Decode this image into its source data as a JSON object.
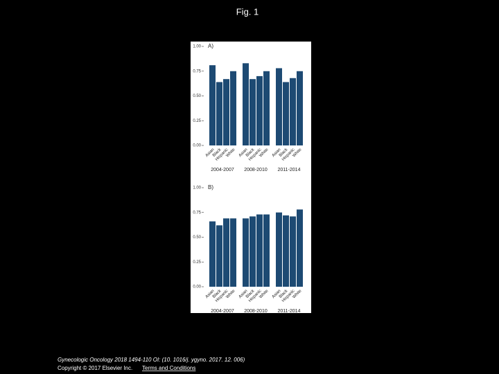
{
  "title": "Fig. 1",
  "chart_data": [
    {
      "type": "bar",
      "panel_label": "A)",
      "color": "#1d4a73",
      "categories": [
        "Asian",
        "Black",
        "Hispanic",
        "White",
        "Asian",
        "Black",
        "Hispanic",
        "White",
        "Asian",
        "Black",
        "Hispanic",
        "White"
      ],
      "groups": [
        "2004-2007",
        "2008-2010",
        "2011-2014"
      ],
      "values": [
        0.81,
        0.64,
        0.67,
        0.75,
        0.83,
        0.67,
        0.7,
        0.75,
        0.78,
        0.64,
        0.68,
        0.75
      ],
      "ylim": [
        0,
        1
      ],
      "yticks": [
        {
          "value": 0,
          "label": "0.00"
        },
        0.25,
        {
          "value": 0.5,
          "label": "0.50"
        },
        0.75,
        {
          "value": 1,
          "label": "1.00"
        }
      ]
    },
    {
      "type": "bar",
      "panel_label": "B)",
      "color": "#1d4a73",
      "categories": [
        "Asian",
        "Black",
        "Hispanic",
        "White",
        "Asian",
        "Black",
        "Hispanic",
        "White",
        "Asian",
        "Black",
        "Hispanic",
        "White"
      ],
      "groups": [
        "2004-2007",
        "2008-2010",
        "2011-2014"
      ],
      "values": [
        0.66,
        0.62,
        0.69,
        0.69,
        0.69,
        0.71,
        0.73,
        0.73,
        0.75,
        0.72,
        0.71,
        0.78
      ],
      "ylim": [
        0,
        1
      ],
      "yticks": [
        {
          "value": 0,
          "label": "0.00"
        },
        0.25,
        {
          "value": 0.5,
          "label": "0.50"
        },
        0.75,
        {
          "value": 1,
          "label": "1.00"
        }
      ]
    }
  ],
  "footer": {
    "citation": "Gynecologic Oncology 2018 1494-110 OI: (10. 1016/j. ygyno. 2017. 12. 006)",
    "copyright": "Copyright © 2017 Elsevier Inc.",
    "link": "Terms and Conditions"
  }
}
